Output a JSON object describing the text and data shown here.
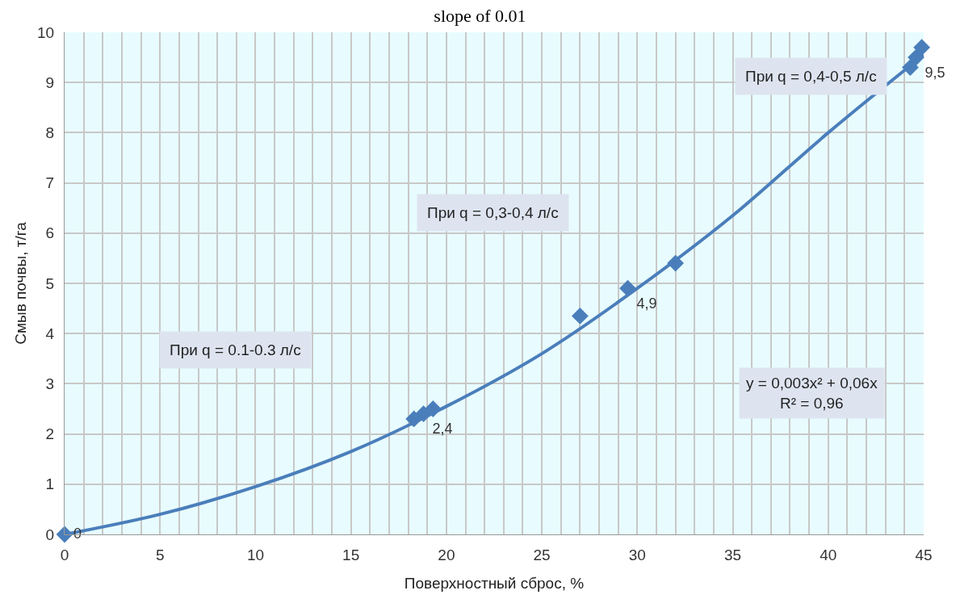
{
  "chart_data": {
    "type": "scatter",
    "title": "slope of 0.01",
    "xlabel": "Поверхностный сброс, %",
    "ylabel": "Смыв почвы, т/га",
    "xlim": [
      0,
      45
    ],
    "xticks": [
      0,
      5,
      10,
      15,
      20,
      25,
      30,
      35,
      40,
      45
    ],
    "ylim": [
      0,
      10
    ],
    "yticks": [
      0,
      1,
      2,
      3,
      4,
      5,
      6,
      7,
      8,
      9,
      10
    ],
    "grid": true,
    "legend": false,
    "series": [
      {
        "type": "line",
        "marker": "none",
        "color": "#4a7ebb",
        "x": [
          0,
          5,
          10,
          15,
          20,
          25,
          30,
          35,
          40,
          45
        ],
        "values": [
          0,
          0.4,
          0.95,
          1.65,
          2.55,
          3.6,
          4.9,
          6.35,
          8.0,
          9.55
        ]
      },
      {
        "marker": "diamond",
        "color": "#4a7ebb",
        "x": [
          0,
          18.3,
          18.8,
          19.3,
          27,
          29.5,
          32,
          44.3,
          44.6,
          44.9
        ],
        "values": [
          0,
          2.3,
          2.4,
          2.5,
          4.35,
          4.9,
          5.4,
          9.3,
          9.5,
          9.7
        ],
        "value_labels": [
          "0",
          null,
          "2,4",
          null,
          null,
          "4,9",
          null,
          null,
          "9,5",
          null
        ]
      }
    ],
    "annotations": [
      "При q = 0.1-0.3 л/с",
      "При q = 0,3-0,4 л/с",
      "При q = 0,4-0,5 л/с",
      "y = 0,003x² + 0,06x\nR² = 0,96"
    ]
  }
}
